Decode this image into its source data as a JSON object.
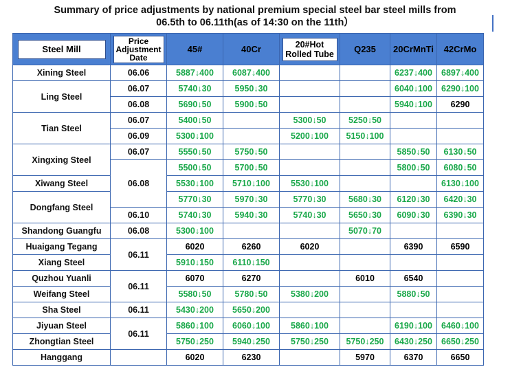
{
  "title_line1": "Summary of price adjustments by national premium special steel bar steel mills from",
  "title_line2": "06.5th to 06.11th(as of 14:30 on the 11th）",
  "headers": {
    "mill": "Steel Mill",
    "date_l1": "Price",
    "date_l2": "Adjustment",
    "date_l3": "Date",
    "c45": "45#",
    "c40cr": "40Cr",
    "tube_l1": "20#Hot",
    "tube_l2": "Rolled Tube",
    "q235": "Q235",
    "c20crmnti": "20CrMnTi",
    "c42crmo": "42CrMo"
  },
  "mills": {
    "xining": "Xining Steel",
    "ling": "Ling Steel",
    "tian": "Tian Steel",
    "xingxing": "Xingxing Steel",
    "xiwang": "Xiwang Steel",
    "dongfang": "Dongfang Steel",
    "shandong": "Shandong Guangfu",
    "huaigang": "Huaigang Tegang",
    "xiang": "Xiang Steel",
    "quzhou": "Quzhou Yuanli",
    "weifang": "Weifang Steel",
    "sha": "Sha Steel",
    "jiyuan": "Jiyuan Steel",
    "zhongtian": "Zhongtian Steel",
    "hanggang": "Hanggang"
  },
  "dates": {
    "d1": "06.06",
    "d2": "06.07",
    "d3": "06.08",
    "d4": "06.07",
    "d5": "06.09",
    "d6": "06.07",
    "d7": "06.08",
    "d8": "06.10",
    "d9": "06.08",
    "d10": "06.11",
    "d11": "06.11",
    "d12": "06.11",
    "d13": "06.11"
  },
  "rows": {
    "r1": {
      "c45": "5887↓400",
      "c40cr": "6087↓400",
      "tube": "",
      "q235": "",
      "c20": "6237↓400",
      "c42": "6897↓400"
    },
    "r2": {
      "c45": "5740↓30",
      "c40cr": "5950↓30",
      "tube": "",
      "q235": "",
      "c20": "6040↓100",
      "c42": "6290↓100"
    },
    "r3": {
      "c45": "5690↓50",
      "c40cr": "5900↓50",
      "tube": "",
      "q235": "",
      "c20": "5940↓100",
      "c42": "6290"
    },
    "r4": {
      "c45": "5400↓50",
      "c40cr": "",
      "tube": "5300↓50",
      "q235": "5250↓50",
      "c20": "",
      "c42": ""
    },
    "r5": {
      "c45": "5300↓100",
      "c40cr": "",
      "tube": "5200↓100",
      "q235": "5150↓100",
      "c20": "",
      "c42": ""
    },
    "r6": {
      "c45": "5550↓50",
      "c40cr": "5750↓50",
      "tube": "",
      "q235": "",
      "c20": "5850↓50",
      "c42": "6130↓50"
    },
    "r7": {
      "c45": "5500↓50",
      "c40cr": "5700↓50",
      "tube": "",
      "q235": "",
      "c20": "5800↓50",
      "c42": "6080↓50"
    },
    "r8": {
      "c45": "5530↓100",
      "c40cr": "5710↓100",
      "tube": "5530↓100",
      "q235": "",
      "c20": "",
      "c42": "6130↓100"
    },
    "r9": {
      "c45": "5770↓30",
      "c40cr": "5970↓30",
      "tube": "5770↓30",
      "q235": "5680↓30",
      "c20": "6120↓30",
      "c42": "6420↓30"
    },
    "r10": {
      "c45": "5740↓30",
      "c40cr": "5940↓30",
      "tube": "5740↓30",
      "q235": "5650↓30",
      "c20": "6090↓30",
      "c42": "6390↓30"
    },
    "r11": {
      "c45": "5300↓100",
      "c40cr": "",
      "tube": "",
      "q235": "5070↓70",
      "c20": "",
      "c42": ""
    },
    "r12": {
      "c45": "6020",
      "c40cr": "6260",
      "tube": "6020",
      "q235": "",
      "c20": "6390",
      "c42": "6590"
    },
    "r13": {
      "c45": "5910↓150",
      "c40cr": "6110↓150",
      "tube": "",
      "q235": "",
      "c20": "",
      "c42": ""
    },
    "r14": {
      "c45": "6070",
      "c40cr": "6270",
      "tube": "",
      "q235": "6010",
      "c20": "6540",
      "c42": ""
    },
    "r15": {
      "c45": "5580↓50",
      "c40cr": "5780↓50",
      "tube": "5380↓200",
      "q235": "",
      "c20": "5880↓50",
      "c42": ""
    },
    "r16": {
      "c45": "5430↓200",
      "c40cr": "5650↓200",
      "tube": "",
      "q235": "",
      "c20": "",
      "c42": ""
    },
    "r17": {
      "c45": "5860↓100",
      "c40cr": "6060↓100",
      "tube": "5860↓100",
      "q235": "",
      "c20": "6190↓100",
      "c42": "6460↓100"
    },
    "r18": {
      "c45": "5750↓250",
      "c40cr": "5940↓250",
      "tube": "5750↓250",
      "q235": "5750↓250",
      "c20": "6430↓250",
      "c42": "6650↓250"
    },
    "r19": {
      "c45": "6020",
      "c40cr": "6230",
      "tube": "",
      "q235": "5970",
      "c20": "6370",
      "c42": "6650"
    }
  },
  "colors": {
    "header_blue": "#4a7fd1",
    "grid_blue": "#3b66b0",
    "decrease_green": "#1aa84a",
    "unchanged_black": "#000000"
  }
}
